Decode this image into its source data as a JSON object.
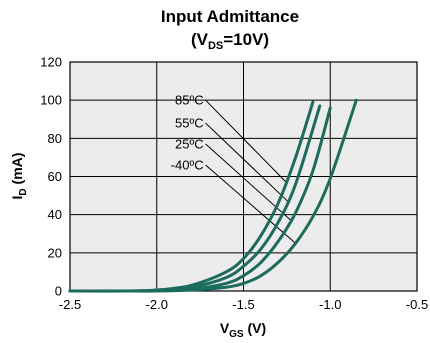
{
  "chart_data": {
    "type": "line",
    "title_line1": "Input Admittance",
    "title_line2": {
      "open": "(V",
      "sub": "DS",
      "close": "=10V)"
    },
    "xlabel": {
      "main": "V",
      "sub": "GS",
      "unit": " (V)"
    },
    "ylabel": {
      "main": "I",
      "sub": "D",
      "unit": " (mA)"
    },
    "xlim": [
      -2.5,
      -0.5
    ],
    "ylim": [
      0,
      120
    ],
    "x_ticks": [
      "-2.5",
      "-2.0",
      "-1.5",
      "-1.0",
      "-0.5"
    ],
    "y_ticks": [
      "0",
      "20",
      "40",
      "60",
      "80",
      "100",
      "120"
    ],
    "grid": true,
    "series": [
      {
        "name": "85ºC",
        "x": [
          -2.5,
          -2.2,
          -2.0,
          -1.8,
          -1.6,
          -1.5,
          -1.4,
          -1.3,
          -1.2,
          -1.1
        ],
        "y": [
          0,
          0,
          0.5,
          3,
          10,
          17,
          29,
          46,
          70,
          99
        ]
      },
      {
        "name": "55ºC",
        "x": [
          -2.5,
          -2.2,
          -2.0,
          -1.8,
          -1.6,
          -1.5,
          -1.4,
          -1.3,
          -1.2,
          -1.06
        ],
        "y": [
          0,
          0,
          0.3,
          2,
          7,
          13,
          22,
          36,
          56,
          97
        ]
      },
      {
        "name": "25ºC",
        "x": [
          -2.5,
          -2.2,
          -2.0,
          -1.8,
          -1.6,
          -1.5,
          -1.4,
          -1.3,
          -1.2,
          -1.1,
          -1.0
        ],
        "y": [
          0,
          0,
          0.2,
          1,
          4,
          8,
          15,
          26,
          41,
          63,
          96
        ]
      },
      {
        "name": "-40ºC",
        "x": [
          -2.5,
          -2.2,
          -2.0,
          -1.8,
          -1.6,
          -1.5,
          -1.4,
          -1.3,
          -1.2,
          -1.1,
          -1.0,
          -0.85
        ],
        "y": [
          0,
          0,
          0,
          0.5,
          2,
          4,
          8,
          15,
          25,
          39,
          59,
          100
        ]
      }
    ],
    "line_color": "#1d6b5d",
    "plot_background": "#ececec"
  }
}
